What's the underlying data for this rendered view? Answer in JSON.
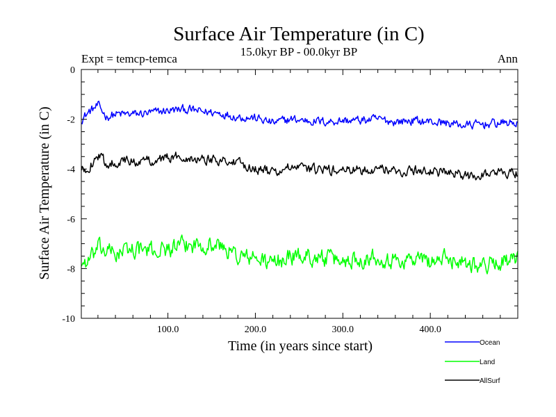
{
  "chart_data": {
    "type": "line",
    "title": "Surface Air Temperature (in C)",
    "subtitle": "15.0kyr BP - 00.0kyr BP",
    "left_label": "Expt = temcp-temca",
    "right_label": "Ann",
    "xlabel": "Time (in years since start)",
    "ylabel": "Surface Air Temperature (in C)",
    "xlim": [
      1,
      500
    ],
    "ylim": [
      -10,
      0
    ],
    "x_ticks": [
      100,
      200,
      300,
      400
    ],
    "x_tick_labels": [
      "100.0",
      "200.0",
      "300.0",
      "400.0"
    ],
    "y_ticks": [
      0,
      -2,
      -4,
      -6,
      -8,
      -10
    ],
    "y_tick_labels": [
      "0",
      "-2",
      "-4",
      "-6",
      "-8",
      "-10"
    ],
    "grid": false,
    "legend_position": "bottom-right",
    "series": [
      {
        "name": "Ocean",
        "color": "#0000ff",
        "x": [
          1,
          10,
          20,
          30,
          40,
          60,
          80,
          100,
          120,
          140,
          160,
          180,
          200,
          220,
          240,
          260,
          280,
          300,
          320,
          340,
          360,
          380,
          400,
          420,
          440,
          460,
          480,
          500
        ],
        "values": [
          -2.0,
          -1.7,
          -1.45,
          -1.9,
          -1.8,
          -1.8,
          -1.75,
          -1.65,
          -1.6,
          -1.7,
          -1.75,
          -1.9,
          -1.95,
          -2.15,
          -2.0,
          -2.05,
          -2.1,
          -2.05,
          -2.05,
          -2.0,
          -2.1,
          -2.05,
          -2.1,
          -2.15,
          -2.25,
          -2.2,
          -2.15,
          -2.15
        ]
      },
      {
        "name": "Land",
        "color": "#00ff00",
        "x": [
          1,
          10,
          20,
          30,
          40,
          60,
          80,
          100,
          120,
          140,
          160,
          180,
          200,
          220,
          240,
          260,
          280,
          300,
          320,
          340,
          360,
          380,
          400,
          420,
          440,
          460,
          480,
          500
        ],
        "values": [
          -7.8,
          -7.7,
          -7.2,
          -7.3,
          -7.4,
          -7.2,
          -7.3,
          -7.2,
          -7.1,
          -7.0,
          -7.1,
          -7.5,
          -7.6,
          -7.8,
          -7.5,
          -7.5,
          -7.6,
          -7.7,
          -7.6,
          -7.5,
          -7.7,
          -7.6,
          -7.7,
          -7.6,
          -7.7,
          -7.9,
          -7.7,
          -7.7
        ]
      },
      {
        "name": "AllSurf",
        "color": "#000000",
        "x": [
          1,
          10,
          20,
          30,
          40,
          60,
          80,
          100,
          120,
          140,
          160,
          180,
          200,
          220,
          240,
          260,
          280,
          300,
          320,
          340,
          360,
          380,
          400,
          420,
          440,
          460,
          480,
          500
        ],
        "values": [
          -4.1,
          -3.9,
          -3.45,
          -3.8,
          -3.7,
          -3.7,
          -3.65,
          -3.55,
          -3.5,
          -3.6,
          -3.6,
          -3.8,
          -3.95,
          -4.15,
          -3.95,
          -4.0,
          -4.05,
          -4.05,
          -4.05,
          -3.95,
          -4.1,
          -4.05,
          -4.1,
          -4.15,
          -4.3,
          -4.2,
          -4.15,
          -4.15
        ]
      }
    ]
  }
}
